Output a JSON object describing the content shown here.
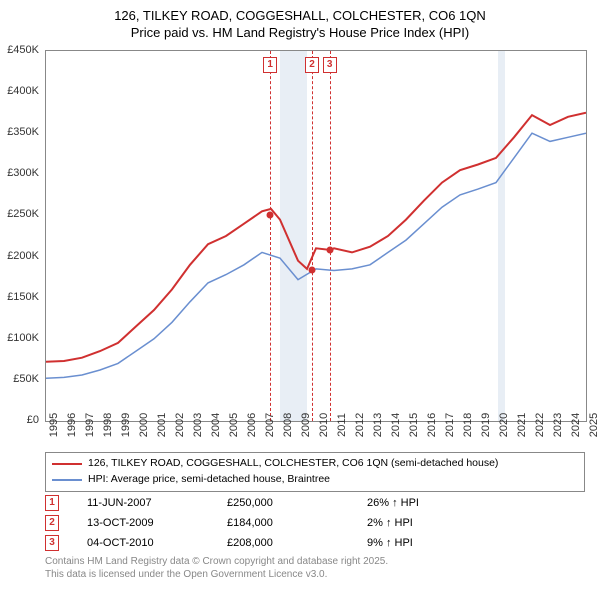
{
  "title": {
    "line1": "126, TILKEY ROAD, COGGESHALL, COLCHESTER, CO6 1QN",
    "line2": "Price paid vs. HM Land Registry's House Price Index (HPI)"
  },
  "chart": {
    "background_color": "#ffffff",
    "plot_border_color": "#888888",
    "shade_color": "#e8eef5",
    "x_years": [
      1995,
      1996,
      1997,
      1998,
      1999,
      2000,
      2001,
      2002,
      2003,
      2004,
      2005,
      2006,
      2007,
      2008,
      2009,
      2010,
      2011,
      2012,
      2013,
      2014,
      2015,
      2016,
      2017,
      2018,
      2019,
      2020,
      2021,
      2022,
      2023,
      2024,
      2025
    ],
    "x_min": 1995,
    "x_max": 2025,
    "y_ticks": [
      0,
      50,
      100,
      150,
      200,
      250,
      300,
      350,
      400,
      450
    ],
    "y_tick_labels": [
      "£0",
      "£50K",
      "£100K",
      "£150K",
      "£200K",
      "£250K",
      "£300K",
      "£350K",
      "£400K",
      "£450K"
    ],
    "y_min": 0,
    "y_max": 450,
    "shade_bands": [
      [
        2008.0,
        2009.5
      ],
      [
        2020.1,
        2020.5
      ]
    ],
    "series": [
      {
        "name": "126, TILKEY ROAD, COGGESHALL, COLCHESTER, CO6 1QN (semi-detached house)",
        "color": "#d03030",
        "width": 2,
        "data": [
          [
            1995,
            72
          ],
          [
            1996,
            73
          ],
          [
            1997,
            77
          ],
          [
            1998,
            85
          ],
          [
            1999,
            95
          ],
          [
            2000,
            115
          ],
          [
            2001,
            135
          ],
          [
            2002,
            160
          ],
          [
            2003,
            190
          ],
          [
            2004,
            215
          ],
          [
            2005,
            225
          ],
          [
            2006,
            240
          ],
          [
            2007,
            255
          ],
          [
            2007.5,
            258
          ],
          [
            2008,
            245
          ],
          [
            2009,
            195
          ],
          [
            2009.5,
            185
          ],
          [
            2010,
            210
          ],
          [
            2010.8,
            208
          ],
          [
            2011,
            210
          ],
          [
            2012,
            205
          ],
          [
            2013,
            212
          ],
          [
            2014,
            225
          ],
          [
            2015,
            245
          ],
          [
            2016,
            268
          ],
          [
            2017,
            290
          ],
          [
            2018,
            305
          ],
          [
            2019,
            312
          ],
          [
            2020,
            320
          ],
          [
            2021,
            345
          ],
          [
            2022,
            372
          ],
          [
            2023,
            360
          ],
          [
            2024,
            370
          ],
          [
            2025,
            375
          ]
        ]
      },
      {
        "name": "HPI: Average price, semi-detached house, Braintree",
        "color": "#6a8fd0",
        "width": 1.5,
        "data": [
          [
            1995,
            52
          ],
          [
            1996,
            53
          ],
          [
            1997,
            56
          ],
          [
            1998,
            62
          ],
          [
            1999,
            70
          ],
          [
            2000,
            85
          ],
          [
            2001,
            100
          ],
          [
            2002,
            120
          ],
          [
            2003,
            145
          ],
          [
            2004,
            168
          ],
          [
            2005,
            178
          ],
          [
            2006,
            190
          ],
          [
            2007,
            205
          ],
          [
            2008,
            198
          ],
          [
            2009,
            172
          ],
          [
            2010,
            185
          ],
          [
            2011,
            183
          ],
          [
            2012,
            185
          ],
          [
            2013,
            190
          ],
          [
            2014,
            205
          ],
          [
            2015,
            220
          ],
          [
            2016,
            240
          ],
          [
            2017,
            260
          ],
          [
            2018,
            275
          ],
          [
            2019,
            282
          ],
          [
            2020,
            290
          ],
          [
            2021,
            320
          ],
          [
            2022,
            350
          ],
          [
            2023,
            340
          ],
          [
            2024,
            345
          ],
          [
            2025,
            350
          ]
        ]
      }
    ],
    "event_lines": [
      {
        "n": "1",
        "year": 2007.45
      },
      {
        "n": "2",
        "year": 2009.78
      },
      {
        "n": "3",
        "year": 2010.76
      }
    ],
    "points": [
      {
        "year": 2007.45,
        "value": 250,
        "color": "#d03030"
      },
      {
        "year": 2009.78,
        "value": 184,
        "color": "#d03030"
      },
      {
        "year": 2010.76,
        "value": 208,
        "color": "#d03030"
      }
    ]
  },
  "legend": [
    {
      "color": "#d03030",
      "label": "126, TILKEY ROAD, COGGESHALL, COLCHESTER, CO6 1QN (semi-detached house)"
    },
    {
      "color": "#6a8fd0",
      "label": "HPI: Average price, semi-detached house, Braintree"
    }
  ],
  "events_table": [
    {
      "n": "1",
      "date": "11-JUN-2007",
      "price": "£250,000",
      "delta": "26% ↑ HPI"
    },
    {
      "n": "2",
      "date": "13-OCT-2009",
      "price": "£184,000",
      "delta": "2% ↑ HPI"
    },
    {
      "n": "3",
      "date": "04-OCT-2010",
      "price": "£208,000",
      "delta": "9% ↑ HPI"
    }
  ],
  "footer": {
    "line1": "Contains HM Land Registry data © Crown copyright and database right 2025.",
    "line2": "This data is licensed under the Open Government Licence v3.0."
  }
}
